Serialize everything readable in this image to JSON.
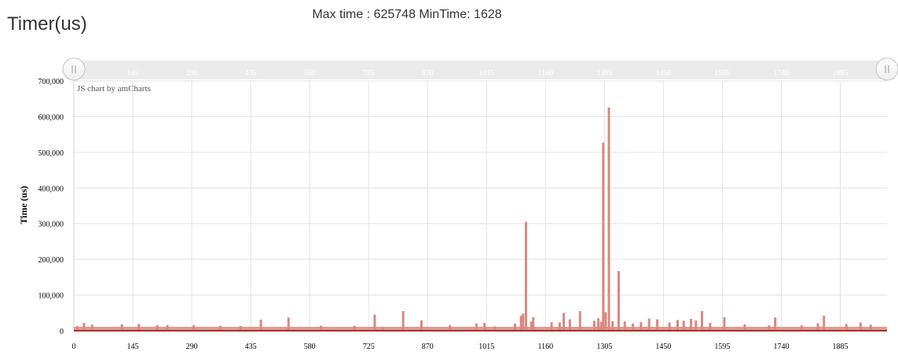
{
  "header": {
    "title": "Timer(us)",
    "max_label": "Max time : ",
    "max_value": "625748",
    "min_label": " MinTime: ",
    "min_value": "1628"
  },
  "chart_data": {
    "type": "bar",
    "ylabel": "Time (us)",
    "xlabel": "",
    "credit": "JS chart by amCharts",
    "ylim": [
      0,
      700000
    ],
    "yticks": [
      0,
      100000,
      200000,
      300000,
      400000,
      500000,
      600000,
      700000
    ],
    "ytick_labels": [
      "0",
      "100,000",
      "200,000",
      "300,000",
      "400,000",
      "500,000",
      "600,000",
      "700,000"
    ],
    "xlim": [
      0,
      2000
    ],
    "xticks": [
      0,
      145,
      290,
      435,
      580,
      725,
      870,
      1015,
      1160,
      1305,
      1450,
      1595,
      1740,
      1885
    ],
    "bar_color": "#d98880",
    "baseline_color": "#a8322d",
    "scrollbar": {
      "range_fraction": [
        0,
        1
      ],
      "tick_labels": [
        "145",
        "290",
        "435",
        "580",
        "725",
        "870",
        "1015",
        "1160",
        "1305",
        "1450",
        "1595",
        "1740",
        "1885"
      ]
    },
    "series": [
      {
        "x": [
          8,
          25,
          45,
          118,
          160,
          205,
          230,
          295,
          360,
          410,
          460,
          528,
          608,
          690,
          740,
          760,
          810,
          855,
          925,
          990,
          1010,
          1035,
          1085,
          1100,
          1105,
          1112,
          1125,
          1130,
          1175,
          1195,
          1205,
          1220,
          1245,
          1280,
          1290,
          1297,
          1302,
          1308,
          1316,
          1325,
          1340,
          1355,
          1375,
          1395,
          1415,
          1435,
          1465,
          1485,
          1500,
          1518,
          1530,
          1545,
          1565,
          1600,
          1650,
          1710,
          1725,
          1790,
          1830,
          1845,
          1900,
          1935,
          1960
        ],
        "values": [
          13000,
          22000,
          17000,
          18000,
          19000,
          16000,
          16000,
          16000,
          14000,
          13000,
          31000,
          37000,
          14000,
          14000,
          45000,
          11000,
          55000,
          29000,
          16000,
          20000,
          22000,
          12000,
          20000,
          42000,
          48000,
          305000,
          26000,
          38000,
          24000,
          23000,
          50000,
          32000,
          55000,
          28000,
          35000,
          25000,
          527000,
          52000,
          625748,
          27000,
          167000,
          26000,
          20000,
          24000,
          34000,
          32000,
          23000,
          30000,
          28000,
          33000,
          29000,
          55000,
          22000,
          38000,
          18000,
          15000,
          37000,
          15000,
          21000,
          42000,
          19000,
          23000,
          17000
        ]
      }
    ]
  }
}
